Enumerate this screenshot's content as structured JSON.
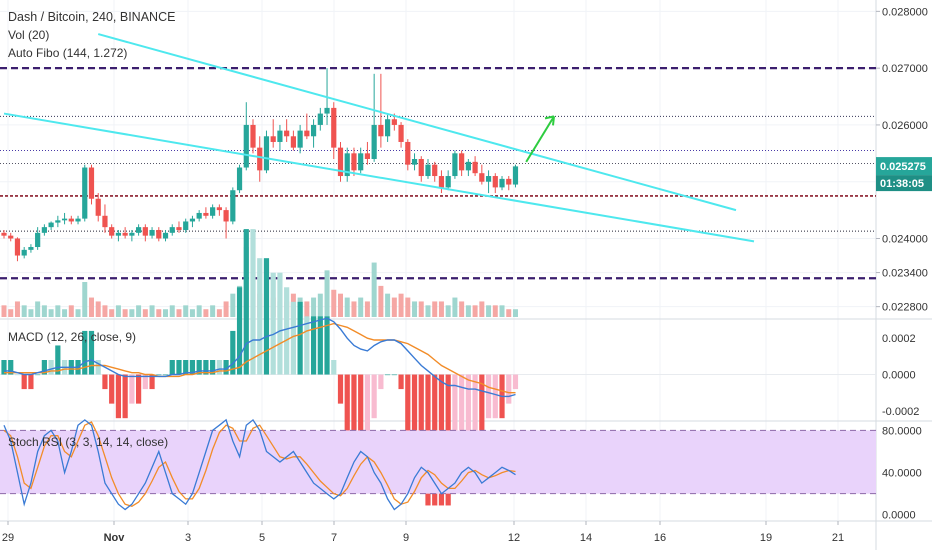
{
  "header": {
    "symbol_line": "Dash / Bitcoin, 240, BINANCE",
    "indicator_vol": "Vol (20)",
    "indicator_fibo": "Auto Fibo (144, 1.272)",
    "macd_label": "MACD (12, 26, close, 9)",
    "stoch_label": "Stoch RSI (3, 3, 14, 14, close)"
  },
  "price_badge": {
    "value": "0.025275",
    "countdown": "01:38:05",
    "color": "#26a69a"
  },
  "colors": {
    "up": "#26a69a",
    "down": "#ef5350",
    "vol_up": "#9fd6cf",
    "vol_down": "#f5a7a4",
    "trend": "#4ee8ee",
    "fib_dark": "#3b1e6e",
    "fib_mid": "#8a1c2b",
    "macd_line": "#3a7bd5",
    "signal_line": "#f28c28",
    "stoch_k": "#3a7bd5",
    "stoch_d": "#f28c28",
    "stoch_band": "#e9d3fb",
    "arrow": "#2ecc40"
  },
  "chart_data": {
    "type": "candlestick",
    "price_axis": {
      "ylim": [
        0.0226,
        0.0282
      ],
      "ticks": [
        "0.028000",
        "0.027000",
        "0.026000",
        "0.025000",
        "0.024000",
        "0.023400",
        "0.022800"
      ]
    },
    "x_axis_ticks": [
      "29",
      "Nov",
      "3",
      "5",
      "7",
      "9",
      "12",
      "14",
      "16",
      "19",
      "21"
    ],
    "fib_levels": [
      0.027,
      0.02615,
      0.02555,
      0.02532,
      0.02475,
      0.02413,
      0.0233
    ],
    "candles": [
      [
        0.0241,
        0.02415,
        0.024,
        0.02405
      ],
      [
        0.02405,
        0.0241,
        0.02395,
        0.024
      ],
      [
        0.024,
        0.02402,
        0.0236,
        0.0237
      ],
      [
        0.0237,
        0.02385,
        0.02365,
        0.0238
      ],
      [
        0.0238,
        0.0239,
        0.02375,
        0.02385
      ],
      [
        0.02385,
        0.0242,
        0.0238,
        0.0241
      ],
      [
        0.0241,
        0.02425,
        0.02405,
        0.0242
      ],
      [
        0.0242,
        0.0243,
        0.02415,
        0.02428
      ],
      [
        0.02428,
        0.0244,
        0.0242,
        0.02432
      ],
      [
        0.02432,
        0.02445,
        0.02425,
        0.02435
      ],
      [
        0.02435,
        0.0244,
        0.02425,
        0.0243
      ],
      [
        0.0243,
        0.0244,
        0.02425,
        0.02435
      ],
      [
        0.02435,
        0.0253,
        0.0243,
        0.02525
      ],
      [
        0.02525,
        0.0253,
        0.0246,
        0.0247
      ],
      [
        0.0247,
        0.0248,
        0.0243,
        0.0244
      ],
      [
        0.0244,
        0.0246,
        0.0241,
        0.0242
      ],
      [
        0.0242,
        0.02425,
        0.024,
        0.02405
      ],
      [
        0.02405,
        0.02415,
        0.02395,
        0.0241
      ],
      [
        0.0241,
        0.0242,
        0.024,
        0.02405
      ],
      [
        0.02405,
        0.02415,
        0.02395,
        0.0241
      ],
      [
        0.0241,
        0.02425,
        0.02405,
        0.0242
      ],
      [
        0.0242,
        0.02425,
        0.02395,
        0.02405
      ],
      [
        0.02405,
        0.0242,
        0.024,
        0.02415
      ],
      [
        0.02415,
        0.0242,
        0.02395,
        0.024
      ],
      [
        0.024,
        0.02415,
        0.02395,
        0.0241
      ],
      [
        0.0241,
        0.02425,
        0.02405,
        0.0242
      ],
      [
        0.0242,
        0.0243,
        0.0241,
        0.02415
      ],
      [
        0.02415,
        0.02435,
        0.0241,
        0.0243
      ],
      [
        0.0243,
        0.0244,
        0.0242,
        0.02435
      ],
      [
        0.02435,
        0.0245,
        0.0243,
        0.02445
      ],
      [
        0.02445,
        0.02455,
        0.02435,
        0.0244
      ],
      [
        0.0244,
        0.0246,
        0.02435,
        0.02455
      ],
      [
        0.02455,
        0.0246,
        0.0244,
        0.0245
      ],
      [
        0.0245,
        0.02455,
        0.024,
        0.0243
      ],
      [
        0.0243,
        0.0249,
        0.02425,
        0.02485
      ],
      [
        0.02485,
        0.0253,
        0.0248,
        0.02525
      ],
      [
        0.02525,
        0.0264,
        0.0252,
        0.026
      ],
      [
        0.026,
        0.0261,
        0.0255,
        0.0256
      ],
      [
        0.0256,
        0.0258,
        0.025,
        0.0252
      ],
      [
        0.0252,
        0.0259,
        0.02515,
        0.0258
      ],
      [
        0.0258,
        0.0261,
        0.0256,
        0.0257
      ],
      [
        0.0257,
        0.026,
        0.02555,
        0.0259
      ],
      [
        0.0259,
        0.0261,
        0.0257,
        0.0258
      ],
      [
        0.0258,
        0.0259,
        0.02555,
        0.0256
      ],
      [
        0.0256,
        0.026,
        0.0255,
        0.0259
      ],
      [
        0.0259,
        0.0262,
        0.02575,
        0.0258
      ],
      [
        0.0258,
        0.0261,
        0.0256,
        0.026
      ],
      [
        0.026,
        0.0263,
        0.0259,
        0.0262
      ],
      [
        0.0262,
        0.027,
        0.026,
        0.0263
      ],
      [
        0.0263,
        0.0264,
        0.0254,
        0.0256
      ],
      [
        0.0256,
        0.0257,
        0.025,
        0.0251
      ],
      [
        0.0251,
        0.0256,
        0.025,
        0.0255
      ],
      [
        0.0255,
        0.0256,
        0.0251,
        0.0252
      ],
      [
        0.0252,
        0.0256,
        0.02515,
        0.0255
      ],
      [
        0.0255,
        0.0257,
        0.0253,
        0.0254
      ],
      [
        0.0254,
        0.0269,
        0.02535,
        0.026
      ],
      [
        0.026,
        0.0269,
        0.0256,
        0.0258
      ],
      [
        0.0258,
        0.0262,
        0.0257,
        0.0261
      ],
      [
        0.0261,
        0.0262,
        0.0259,
        0.026
      ],
      [
        0.026,
        0.02605,
        0.0256,
        0.0257
      ],
      [
        0.0257,
        0.02575,
        0.0252,
        0.0253
      ],
      [
        0.0253,
        0.0255,
        0.0252,
        0.0254
      ],
      [
        0.0254,
        0.02545,
        0.025,
        0.0251
      ],
      [
        0.0251,
        0.0254,
        0.02505,
        0.0253
      ],
      [
        0.0253,
        0.02535,
        0.025,
        0.0251
      ],
      [
        0.0251,
        0.0252,
        0.0248,
        0.0249
      ],
      [
        0.0249,
        0.0252,
        0.02485,
        0.0251
      ],
      [
        0.0251,
        0.02555,
        0.02505,
        0.0255
      ],
      [
        0.0255,
        0.02555,
        0.0251,
        0.0252
      ],
      [
        0.0252,
        0.0254,
        0.0251,
        0.02535
      ],
      [
        0.02535,
        0.02545,
        0.0251,
        0.02515
      ],
      [
        0.02515,
        0.0253,
        0.02495,
        0.025
      ],
      [
        0.025,
        0.0252,
        0.0248,
        0.0251
      ],
      [
        0.0251,
        0.02515,
        0.0248,
        0.0249
      ],
      [
        0.0249,
        0.0251,
        0.02485,
        0.02505
      ],
      [
        0.02505,
        0.0251,
        0.02485,
        0.02495
      ],
      [
        0.02495,
        0.0253,
        0.0249,
        0.02527
      ]
    ],
    "volume": [
      3,
      2,
      4,
      3,
      2,
      4,
      3,
      2,
      3,
      2,
      3,
      2,
      9,
      5,
      4,
      3,
      2,
      3,
      2,
      2,
      3,
      2,
      3,
      2,
      2,
      3,
      2,
      3,
      2,
      3,
      2,
      3,
      2,
      4,
      6,
      8,
      18,
      7,
      6,
      5,
      5,
      4,
      4,
      6,
      5,
      4,
      5,
      6,
      12,
      7,
      6,
      5,
      4,
      5,
      4,
      14,
      8,
      6,
      5,
      6,
      5,
      4,
      4,
      3,
      4,
      4,
      3,
      5,
      4,
      3,
      3,
      4,
      3,
      3,
      3,
      2,
      2
    ],
    "macd": {
      "ylim": [
        -0.00025,
        0.0003
      ],
      "ticks": [
        "0.0002",
        "0.0000",
        "-0.0002"
      ],
      "macd": [
        2e-05,
        2e-05,
        1e-05,
        0.0,
        0.0,
        1e-05,
        2e-05,
        3e-05,
        4e-05,
        4e-05,
        4e-05,
        4e-05,
        7e-05,
        8e-05,
        6e-05,
        4e-05,
        2e-05,
        0.0,
        -1e-05,
        -1e-05,
        -1e-05,
        -1e-05,
        -1e-05,
        -1e-05,
        -1e-05,
        0.0,
        0.0,
        1e-05,
        1e-05,
        2e-05,
        2e-05,
        2e-05,
        3e-05,
        3e-05,
        6e-05,
        0.0001,
        0.00017,
        0.00019,
        0.00019,
        0.00021,
        0.00022,
        0.00024,
        0.00025,
        0.00026,
        0.00027,
        0.00028,
        0.00029,
        0.0003,
        0.00031,
        0.00029,
        0.00025,
        0.0002,
        0.00016,
        0.00014,
        0.00013,
        0.00016,
        0.00018,
        0.00019,
        0.00019,
        0.00017,
        0.00013,
        9e-05,
        5e-05,
        2e-05,
        -1e-05,
        -4e-05,
        -6e-05,
        -6e-05,
        -7e-05,
        -8e-05,
        -8e-05,
        -9e-05,
        -0.0001,
        -0.00011,
        -0.00012,
        -0.00012,
        -0.00011
      ],
      "signal": [
        1e-05,
        1e-05,
        1e-05,
        1e-05,
        1e-05,
        1e-05,
        1e-05,
        2e-05,
        2e-05,
        3e-05,
        3e-05,
        3e-05,
        4e-05,
        5e-05,
        5e-05,
        5e-05,
        4e-05,
        3e-05,
        2e-05,
        1e-05,
        1e-05,
        0.0,
        0.0,
        -1e-05,
        -1e-05,
        -1e-05,
        -1e-05,
        0.0,
        0.0,
        1e-05,
        1e-05,
        1e-05,
        2e-05,
        2e-05,
        3e-05,
        4e-05,
        7e-05,
        9e-05,
        0.00011,
        0.00013,
        0.00015,
        0.00017,
        0.00019,
        0.00021,
        0.00022,
        0.00024,
        0.00025,
        0.00026,
        0.00027,
        0.00028,
        0.00027,
        0.00026,
        0.00024,
        0.00022,
        0.0002,
        0.00019,
        0.00019,
        0.00019,
        0.00019,
        0.00018,
        0.00017,
        0.00015,
        0.00013,
        0.00011,
        8e-05,
        5e-05,
        3e-05,
        1e-05,
        -1e-05,
        -3e-05,
        -4e-05,
        -5e-05,
        -7e-05,
        -8e-05,
        -9e-05,
        -0.0001,
        -0.0001
      ]
    },
    "stoch_rsi": {
      "ylim": [
        -5,
        88
      ],
      "ticks": [
        "80.0000",
        "40.0000",
        "0.0000"
      ],
      "band": [
        20,
        80
      ],
      "k": [
        85,
        70,
        40,
        10,
        30,
        60,
        75,
        80,
        70,
        40,
        60,
        85,
        90,
        85,
        60,
        30,
        20,
        10,
        5,
        10,
        20,
        30,
        45,
        60,
        40,
        20,
        15,
        10,
        20,
        40,
        60,
        80,
        85,
        90,
        70,
        55,
        85,
        90,
        80,
        60,
        55,
        50,
        55,
        60,
        50,
        40,
        30,
        25,
        20,
        15,
        20,
        35,
        50,
        60,
        55,
        40,
        30,
        15,
        5,
        10,
        20,
        35,
        45,
        40,
        30,
        20,
        25,
        30,
        40,
        45,
        40,
        30,
        35,
        40,
        45,
        42,
        38
      ],
      "d": [
        80,
        75,
        55,
        30,
        25,
        45,
        65,
        75,
        75,
        60,
        55,
        70,
        85,
        88,
        75,
        55,
        35,
        20,
        10,
        8,
        12,
        20,
        32,
        45,
        50,
        35,
        22,
        15,
        15,
        25,
        42,
        62,
        78,
        85,
        82,
        70,
        70,
        82,
        85,
        75,
        65,
        55,
        53,
        55,
        55,
        48,
        40,
        32,
        26,
        20,
        18,
        25,
        37,
        48,
        55,
        50,
        40,
        28,
        15,
        10,
        12,
        22,
        35,
        42,
        38,
        30,
        25,
        25,
        32,
        40,
        42,
        38,
        35,
        37,
        40,
        42,
        41
      ]
    }
  }
}
